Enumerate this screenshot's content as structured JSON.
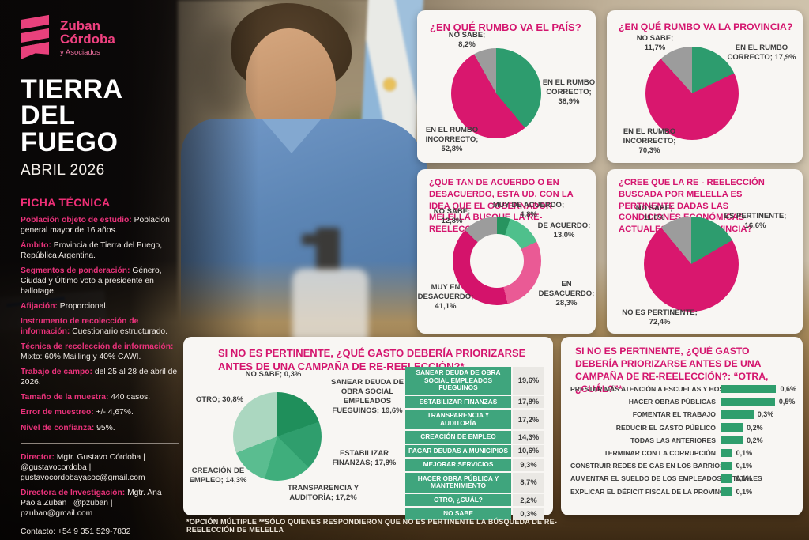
{
  "brand": {
    "name_line1": "Zuban",
    "name_line2": "Córdoba",
    "name_line3": "y Asociados"
  },
  "cover": {
    "title_line1": "TIERRA",
    "title_line2": "DEL FUEGO",
    "date": "ABRIL 2026"
  },
  "ficha": {
    "heading": "FICHA TÉCNICA",
    "items": [
      {
        "label": "Población objeto de estudio:",
        "value": "Población general mayor de 16 años."
      },
      {
        "label": "Ámbito:",
        "value": "Provincia de Tierra del Fuego, República Argentina."
      },
      {
        "label": "Segmentos de ponderación:",
        "value": "Género, Ciudad y Último voto a presidente en ballotage."
      },
      {
        "label": "Afijación:",
        "value": "Proporcional."
      },
      {
        "label": "Instrumento de recolección de información:",
        "value": "Cuestionario estructurado."
      },
      {
        "label": "Técnica de recolección de información:",
        "value": "Mixto: 60% Mailling y 40% CAWI."
      },
      {
        "label": "Trabajo de campo:",
        "value": "del 25 al 28 de abril de 2026."
      },
      {
        "label": "Tamaño de la muestra:",
        "value": "440 casos."
      },
      {
        "label": "Error de muestreo:",
        "value": "+/- 4,67%."
      },
      {
        "label": "Nivel de confianza:",
        "value": "95%."
      }
    ],
    "director_label": "Director:",
    "director_value": "Mgtr. Gustavo Córdoba | @gustavocordoba | gustavocordobayasoc@gmail.com",
    "directora_label": "Directora de Investigación:",
    "directora_value": "Mgtr. Ana Paola Zuban | @pzuban | pzuban@gmail.com",
    "contact": "Contacto: +54 9 351 529-7832"
  },
  "colors": {
    "accent": "#d4156e",
    "green": "#2d9c6e",
    "pink": "#d9176e",
    "gray": "#9c9c9c"
  },
  "footnote": "*OPCIÓN MÚLTIPLE   **SÓLO QUIENES RESPONDIERON QUE NO ES PERTINENTE LA BÚSQUEDA DE RE-REELECCIÓN DE MELELLA",
  "chart_data": [
    {
      "type": "pie",
      "title": "¿EN QUÉ RUMBO VA EL PAÍS?",
      "categories": [
        "EN EL RUMBO CORRECTO",
        "EN EL RUMBO INCORRECTO",
        "NO SABE"
      ],
      "values": [
        38.9,
        52.8,
        8.2
      ],
      "point_labels": [
        "EN EL RUMBO CORRECTO; 38,9%",
        "EN EL RUMBO INCORRECTO; 52,8%",
        "NO SABE; 8,2%"
      ],
      "colors": [
        "#2d9c6e",
        "#d9176e",
        "#9c9c9c"
      ]
    },
    {
      "type": "pie",
      "title": "¿EN QUÉ RUMBO VA LA PROVINCIA?",
      "categories": [
        "EN EL RUMBO CORRECTO",
        "EN EL RUMBO INCORRECTO",
        "NO SABE"
      ],
      "values": [
        17.9,
        70.3,
        11.7
      ],
      "point_labels": [
        "EN EL RUMBO CORRECTO; 17,9%",
        "EN EL RUMBO INCORRECTO; 70,3%",
        "NO SABE; 11,7%"
      ],
      "colors": [
        "#2d9c6e",
        "#d9176e",
        "#9c9c9c"
      ]
    },
    {
      "type": "donut",
      "title": "¿QUE TAN DE ACUERDO O EN DESACUERDO, ESTA UD. CON LA IDEA QUE EL GOBERNADOR MELELLA BUSQUE LA RE-REELECCIÓN?",
      "categories": [
        "MUY DE ACUERDO",
        "DE ACUERDO",
        "EN DESACUERDO",
        "MUY EN DESACUERDO",
        "NO SABE"
      ],
      "values": [
        4.8,
        13.0,
        28.3,
        41.1,
        12.8
      ],
      "point_labels": [
        "MUY DE ACUERDO; 4,8%",
        "DE ACUERDO; 13,0%",
        "EN DESACUERDO; 28,3%",
        "MUY EN DESACUERDO; 41,1%",
        "NO SABE; 12,8%"
      ],
      "colors": [
        "#27945f",
        "#4fc08c",
        "#ea5a95",
        "#d4136b",
        "#9c9c9c"
      ]
    },
    {
      "type": "pie",
      "title": "¿CREE QUE LA RE - REELECCIÓN BUSCADA POR MELELLA ES PERTINENTE DADAS LAS CONDICIONES ECONÓMICAS ACTUALES DE LA PROVINCIA?",
      "categories": [
        "ES PERTINENTE",
        "NO ES PERTINENTE",
        "NO SABE"
      ],
      "values": [
        16.6,
        72.4,
        11.0
      ],
      "point_labels": [
        "ES PERTINENTE; 16,6%",
        "NO ES PERTINENTE; 72,4%",
        "NO SABE; 11,0%"
      ],
      "colors": [
        "#2d9c6e",
        "#d9176e",
        "#9c9c9c"
      ]
    },
    {
      "type": "pie",
      "title": "SI NO ES PERTINENTE, ¿QUÉ GASTO DEBERÍA PRIORIZARSE ANTES DE UNA CAMPAÑA DE RE-REELECCIÓN?*",
      "categories": [
        "SANEAR DEUDA DE OBRA SOCIAL EMPLEADOS FUEGUINOS",
        "ESTABILIZAR FINANZAS",
        "TRANSPARENCIA Y AUDITORÍA",
        "CREACIÓN DE EMPLEO",
        "OTRO",
        "NO SABE"
      ],
      "values": [
        19.6,
        17.8,
        17.2,
        14.3,
        30.8,
        0.3
      ],
      "point_labels": [
        "SANEAR DEUDA DE OBRA SOCIAL EMPLEADOS FUEGUINOS; 19,6%",
        "ESTABILIZAR FINANZAS; 17,8%",
        "TRANSPARENCIA Y AUDITORÍA; 17,2%",
        "CREACIÓN DE EMPLEO; 14,3%",
        "OTRO; 30,8%",
        "NO SABE; 0,3%"
      ],
      "colors": [
        "#1f8f5b",
        "#2f9e6d",
        "#3fae7c",
        "#5abd90",
        "#abd7c0",
        "#d9ece2"
      ]
    },
    {
      "type": "table",
      "rows": [
        {
          "label": "SANEAR DEUDA DE OBRA SOCIAL EMPLEADOS FUEGUINOS",
          "display": "19,6%"
        },
        {
          "label": "ESTABILIZAR FINANZAS",
          "display": "17,8%"
        },
        {
          "label": "TRANSPARENCIA Y AUDITORÍA",
          "display": "17,2%"
        },
        {
          "label": "CREACIÓN DE EMPLEO",
          "display": "14,3%"
        },
        {
          "label": "PAGAR DEUDAS A MUNICIPIOS",
          "display": "10,6%"
        },
        {
          "label": "MEJORAR SERVICIOS",
          "display": "9,3%"
        },
        {
          "label": "HACER OBRA PÚBLICA Y MANTENIMIENTO",
          "display": "8,7%"
        },
        {
          "label": "OTRO, ¿CUÁL?",
          "display": "2,2%"
        },
        {
          "label": "NO SABE",
          "display": "0,3%"
        }
      ]
    },
    {
      "type": "bar",
      "title": "SI NO ES PERTINENTE, ¿QUÉ GASTO DEBERÍA PRIORIZARSE ANTES DE UNA CAMPAÑA DE RE-REELECCIÓN?: “OTRA, ¿CUÁL?”*",
      "xmax": 0.7,
      "rows": [
        {
          "label": "PRESTAR MÁS ATENCIÓN A ESCUELAS Y HOSPITALES",
          "value": 0.6,
          "display": "0,6%"
        },
        {
          "label": "HACER OBRAS PÚBLICAS",
          "value": 0.5,
          "display": "0,5%"
        },
        {
          "label": "FOMENTAR EL TRABAJO",
          "value": 0.3,
          "display": "0,3%"
        },
        {
          "label": "REDUCIR EL GASTO PÚBLICO",
          "value": 0.2,
          "display": "0,2%"
        },
        {
          "label": "TODAS LAS ANTERIORES",
          "value": 0.2,
          "display": "0,2%"
        },
        {
          "label": "TERMINAR CON LA CORRUPCIÓN",
          "value": 0.1,
          "display": "0,1%"
        },
        {
          "label": "CONSTRUIR REDES DE GAS EN LOS BARRIOS",
          "value": 0.1,
          "display": "0,1%"
        },
        {
          "label": "AUMENTAR EL SUELDO DE LOS EMPLEADOS ESTATALES",
          "value": 0.1,
          "display": "0,1%"
        },
        {
          "label": "EXPLICAR EL DÉFICIT FISCAL DE LA PROVINCIA",
          "value": 0.1,
          "display": "0,1%"
        }
      ]
    }
  ]
}
